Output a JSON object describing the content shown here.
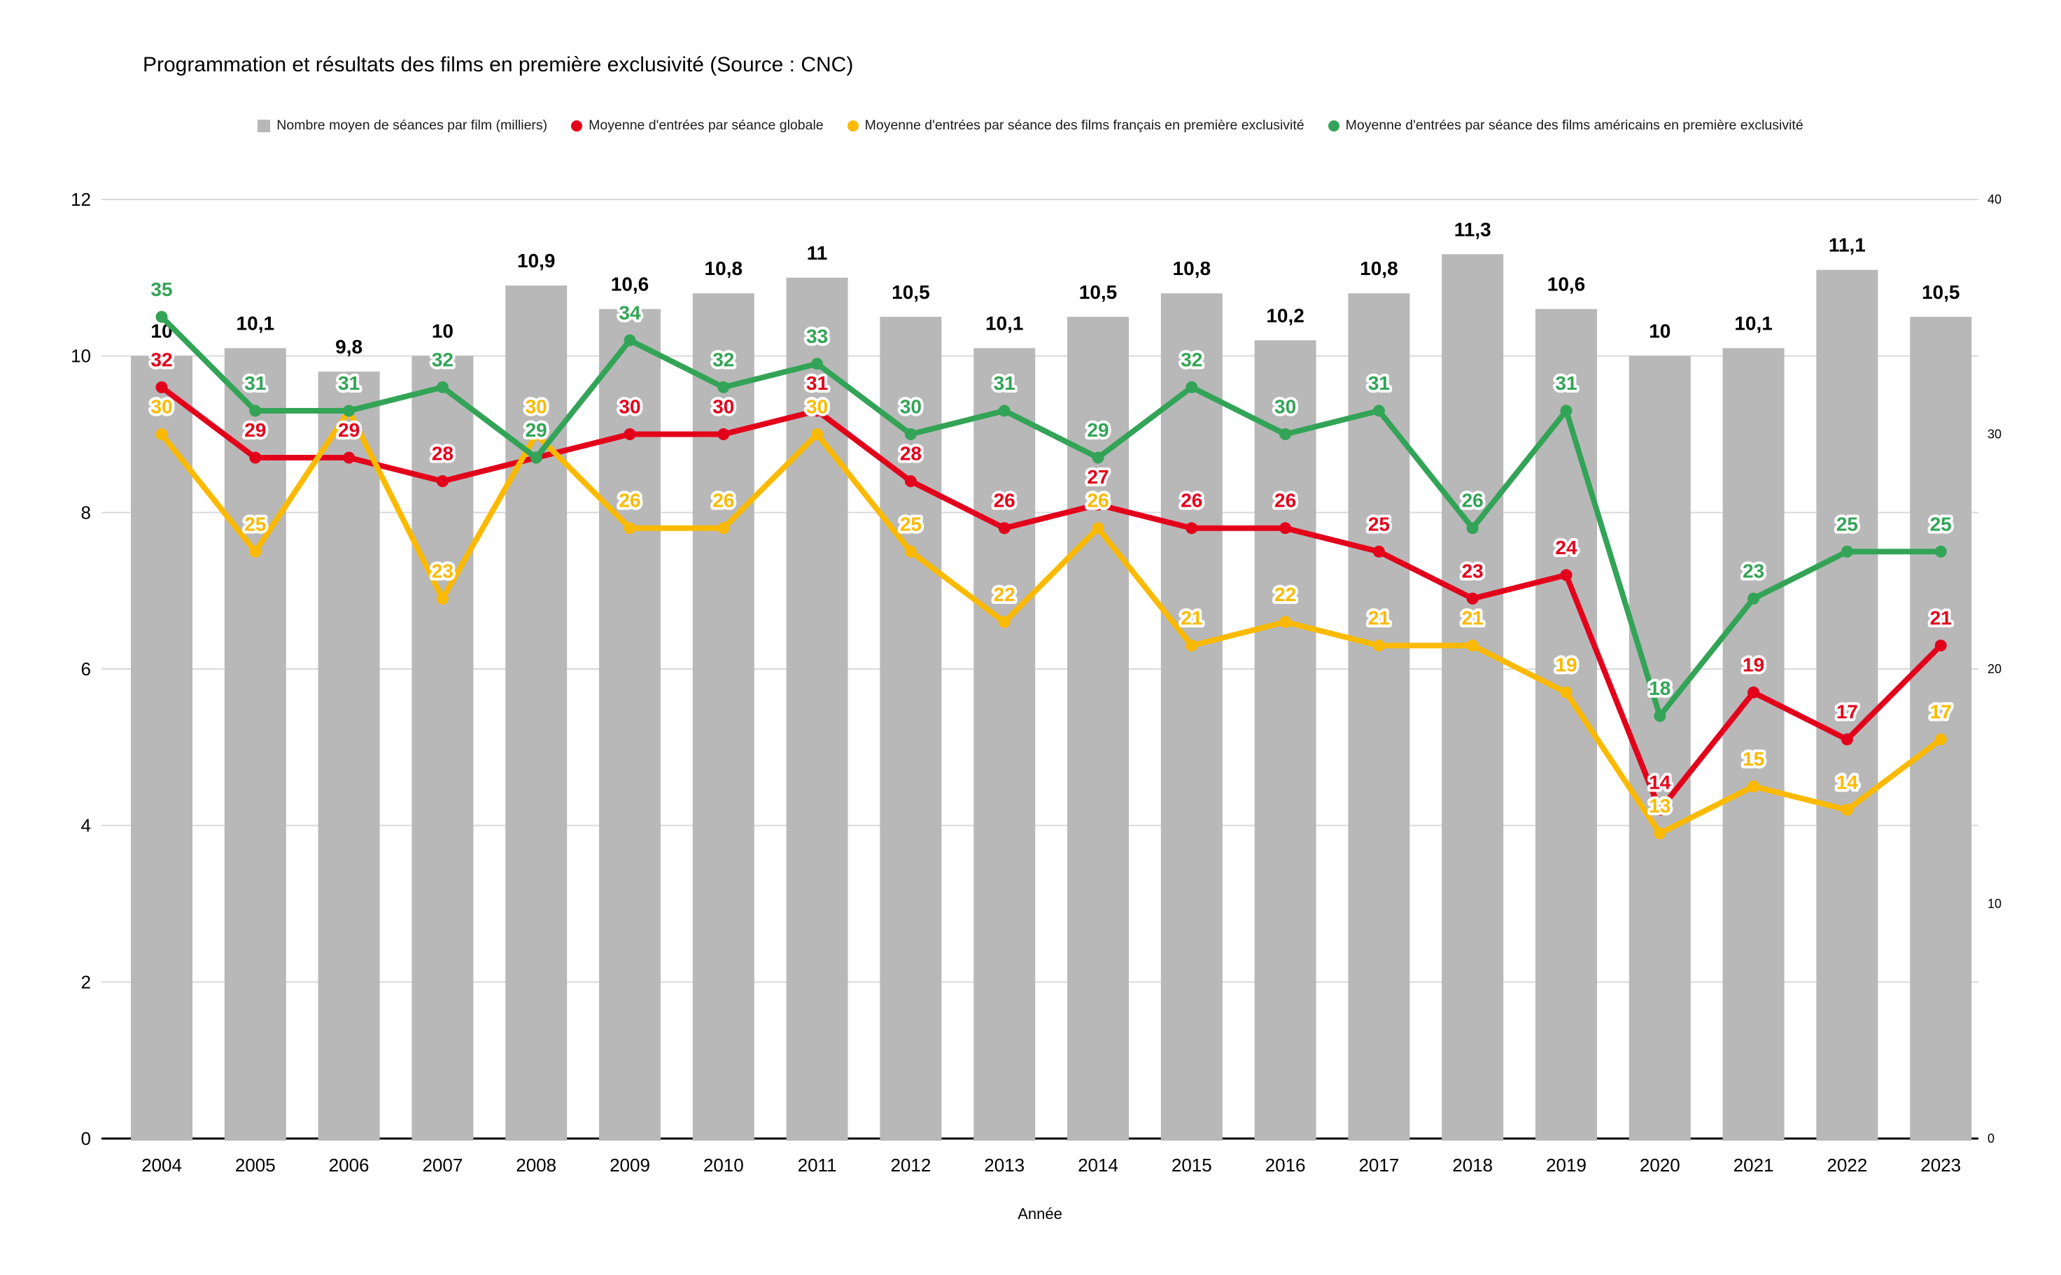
{
  "title": "Programmation et résultats des films en première exclusivité (Source : CNC)",
  "x_axis_title": "Année",
  "colors": {
    "bar": "#b8b8b8",
    "global_line": "#e3001b",
    "french_line": "#fbba00",
    "american_line": "#33a457",
    "gridline": "#d9d9d9",
    "baseline": "#000000"
  },
  "legend": [
    {
      "label": "Nombre moyen de séances par film (milliers)",
      "marker": "square",
      "color": "#b8b8b8"
    },
    {
      "label": "Moyenne d'entrées par séance globale",
      "marker": "circle",
      "color": "#e3001b"
    },
    {
      "label": "Moyenne d'entrées par séance des films français en première exclusivité",
      "marker": "circle",
      "color": "#fbba00"
    },
    {
      "label": "Moyenne d'entrées par séance des films américains en première exclusivité",
      "marker": "circle",
      "color": "#33a457"
    }
  ],
  "chart_data": {
    "type": "bar+line combo",
    "categories": [
      "2004",
      "2005",
      "2006",
      "2007",
      "2008",
      "2009",
      "2010",
      "2011",
      "2012",
      "2013",
      "2014",
      "2015",
      "2016",
      "2017",
      "2018",
      "2019",
      "2020",
      "2021",
      "2022",
      "2023"
    ],
    "xlabel": "Année",
    "left_axis": {
      "min": 0,
      "max": 12,
      "ticks": [
        0,
        2,
        4,
        6,
        8,
        10,
        12
      ]
    },
    "right_axis": {
      "min": 0,
      "max": 40,
      "ticks": [
        0,
        10,
        20,
        30,
        40
      ]
    },
    "grid": "horizontal only",
    "legend_position": "top",
    "series": [
      {
        "name": "Nombre moyen de séances par film (milliers)",
        "type": "bar",
        "axis": "left",
        "color": "#b8b8b8",
        "values": [
          10,
          10.1,
          9.8,
          10,
          10.9,
          10.6,
          10.8,
          11,
          10.5,
          10.1,
          10.5,
          10.8,
          10.2,
          10.8,
          11.3,
          10.6,
          10,
          10.1,
          11.1,
          10.5
        ],
        "value_labels": [
          "10",
          "10,1",
          "9,8",
          "10",
          "10,9",
          "10,6",
          "10,8",
          "11",
          "10,5",
          "10,1",
          "10,5",
          "10,8",
          "10,2",
          "10,8",
          "11,3",
          "10,6",
          "10",
          "10,1",
          "11,1",
          "10,5"
        ]
      },
      {
        "name": "Moyenne d'entrées par séance globale",
        "type": "line",
        "axis": "right",
        "color": "#e3001b",
        "values": [
          32,
          29,
          29,
          28,
          29,
          30,
          30,
          31,
          28,
          26,
          27,
          26,
          26,
          25,
          23,
          24,
          14,
          19,
          17,
          21
        ]
      },
      {
        "name": "Moyenne d'entrées par séance des films français en première exclusivité",
        "type": "line",
        "axis": "right",
        "color": "#fbba00",
        "values": [
          30,
          25,
          31,
          23,
          30,
          26,
          26,
          30,
          25,
          22,
          26,
          21,
          22,
          21,
          21,
          19,
          13,
          15,
          14,
          17
        ]
      },
      {
        "name": "Moyenne d'entrées par séance des films américains en première exclusivité",
        "type": "line",
        "axis": "right",
        "color": "#33a457",
        "values": [
          35,
          31,
          31,
          32,
          29,
          34,
          32,
          33,
          30,
          31,
          29,
          32,
          30,
          31,
          26,
          31,
          18,
          23,
          25,
          25
        ]
      }
    ]
  }
}
